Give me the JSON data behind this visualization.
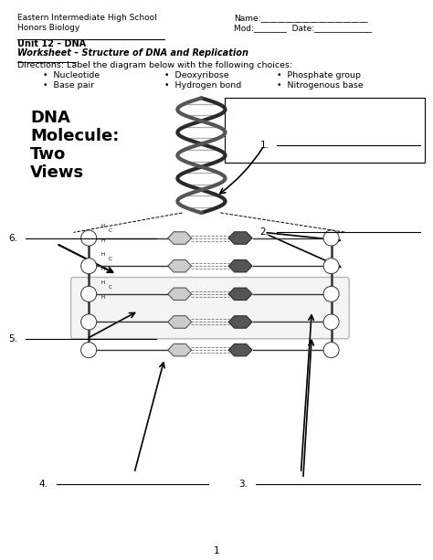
{
  "title_left_line1": "Eastern Intermediate High School",
  "title_left_line2": "Honors Biology",
  "title_right_line1": "Name:__________________________",
  "title_right_line2": "Mod:________  Date:______________",
  "unit_line": "Unit 12 – DNA",
  "worksheet_line": "Worksheet – Structure of DNA and Replication",
  "directions": "Directions: Label the diagram below with the following choices:",
  "bullet_col1": [
    "Nucleotide",
    "Base pair"
  ],
  "bullet_col2": [
    "Deoxyribose",
    "Hydrogen bond"
  ],
  "bullet_col3": [
    "Phosphate group",
    "Nitrogenous base"
  ],
  "dna_title_lines": [
    "DNA",
    "Molecule:",
    "Two",
    "Views"
  ],
  "page_number": "1",
  "bg_color": "#ffffff",
  "text_color": "#000000"
}
